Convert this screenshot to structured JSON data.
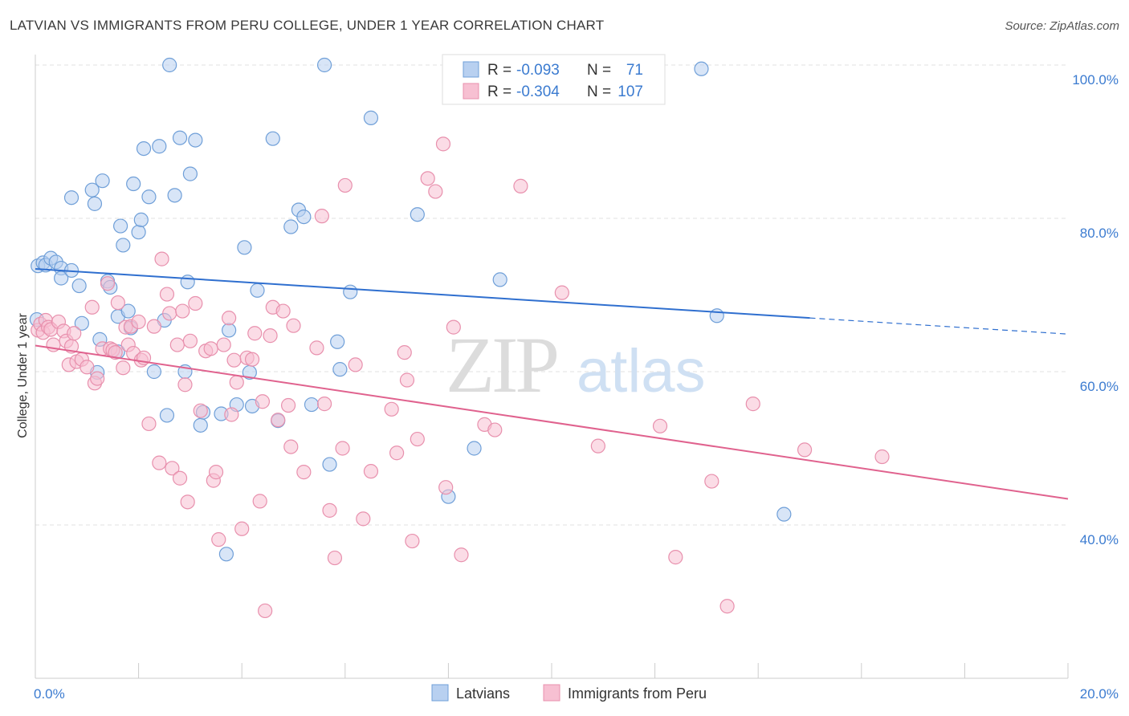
{
  "header": {
    "title": "LATVIAN VS IMMIGRANTS FROM PERU COLLEGE, UNDER 1 YEAR CORRELATION CHART",
    "source": "Source: ZipAtlas.com"
  },
  "watermark": {
    "zip": "ZIP",
    "atlas": "atlas"
  },
  "stats_box": {
    "rows": [
      {
        "r_label": "R =",
        "r_value": "-0.093",
        "n_label": "N =",
        "n_value": "71"
      },
      {
        "r_label": "R =",
        "r_value": "-0.304",
        "n_label": "N =",
        "n_value": "107"
      }
    ]
  },
  "legend": {
    "items": [
      "Latvians",
      "Immigrants from Peru"
    ]
  },
  "colors": {
    "latvians_fill": "#b8d0f0",
    "latvians_stroke": "#6f9fd8",
    "latvians_line": "#2f6fcf",
    "peru_fill": "#f7c0d2",
    "peru_stroke": "#e890ad",
    "peru_line": "#e0628e",
    "value_text": "#3b7bd0",
    "grid": "#e2e2e2"
  },
  "chart_data": {
    "type": "scatter",
    "title": "LATVIAN VS IMMIGRANTS FROM PERU COLLEGE, UNDER 1 YEAR CORRELATION CHART",
    "xlabel": "",
    "ylabel": "College, Under 1 year",
    "xlim": [
      0,
      20
    ],
    "ylim": [
      20,
      100
    ],
    "x_tick_labels": [
      "0.0%",
      "20.0%"
    ],
    "y_tick_labels": [
      "100.0%",
      "80.0%",
      "60.0%",
      "40.0%"
    ],
    "y_ticks": [
      100,
      80,
      60,
      40
    ],
    "grid": true,
    "legend_position": "bottom",
    "series": [
      {
        "name": "Latvians",
        "r": -0.093,
        "n": 71,
        "trend": {
          "x": [
            0,
            15
          ],
          "y": [
            73.4,
            67.0
          ],
          "dashed_to": [
            20,
            64.9
          ]
        },
        "points": [
          [
            0.05,
            73.8
          ],
          [
            0.15,
            74.2
          ],
          [
            0.2,
            73.9
          ],
          [
            0.3,
            74.8
          ],
          [
            0.4,
            74.3
          ],
          [
            0.5,
            73.5
          ],
          [
            0.5,
            72.2
          ],
          [
            0.7,
            73.2
          ],
          [
            0.85,
            71.2
          ],
          [
            0.9,
            66.3
          ],
          [
            1.1,
            83.7
          ],
          [
            1.15,
            81.9
          ],
          [
            1.3,
            84.9
          ],
          [
            0.7,
            82.7
          ],
          [
            1.2,
            59.9
          ],
          [
            1.25,
            64.2
          ],
          [
            1.4,
            71.8
          ],
          [
            1.45,
            71.0
          ],
          [
            1.6,
            62.6
          ],
          [
            1.6,
            67.2
          ],
          [
            1.65,
            79.0
          ],
          [
            1.7,
            76.5
          ],
          [
            1.8,
            67.9
          ],
          [
            1.85,
            65.7
          ],
          [
            1.9,
            84.5
          ],
          [
            2.0,
            78.2
          ],
          [
            2.05,
            79.8
          ],
          [
            2.1,
            89.1
          ],
          [
            2.2,
            82.8
          ],
          [
            2.3,
            60.0
          ],
          [
            2.4,
            89.4
          ],
          [
            2.5,
            66.7
          ],
          [
            2.55,
            54.3
          ],
          [
            2.6,
            100.0
          ],
          [
            2.7,
            83.0
          ],
          [
            2.8,
            90.5
          ],
          [
            2.9,
            60.0
          ],
          [
            2.95,
            71.7
          ],
          [
            3.0,
            85.8
          ],
          [
            3.1,
            90.2
          ],
          [
            3.2,
            53.0
          ],
          [
            3.25,
            54.7
          ],
          [
            3.6,
            54.5
          ],
          [
            3.7,
            36.2
          ],
          [
            3.75,
            65.4
          ],
          [
            3.9,
            55.7
          ],
          [
            4.05,
            76.2
          ],
          [
            4.15,
            59.9
          ],
          [
            4.3,
            70.6
          ],
          [
            4.6,
            90.4
          ],
          [
            4.7,
            53.6
          ],
          [
            4.95,
            78.9
          ],
          [
            5.1,
            81.1
          ],
          [
            5.2,
            80.2
          ],
          [
            5.35,
            55.7
          ],
          [
            5.6,
            100.0
          ],
          [
            5.7,
            47.9
          ],
          [
            5.85,
            63.9
          ],
          [
            5.9,
            60.3
          ],
          [
            6.1,
            70.4
          ],
          [
            6.5,
            93.1
          ],
          [
            7.4,
            80.5
          ],
          [
            8.0,
            43.7
          ],
          [
            8.5,
            50.0
          ],
          [
            9.0,
            72.0
          ],
          [
            10.4,
            100.0
          ],
          [
            12.9,
            99.5
          ],
          [
            13.2,
            67.3
          ],
          [
            14.5,
            41.4
          ],
          [
            0.03,
            66.8
          ],
          [
            4.2,
            55.5
          ]
        ]
      },
      {
        "name": "Immigrants from Peru",
        "r": -0.304,
        "n": 107,
        "trend": {
          "x": [
            0,
            20
          ],
          "y": [
            63.4,
            43.4
          ]
        },
        "points": [
          [
            0.05,
            65.4
          ],
          [
            0.1,
            66.2
          ],
          [
            0.15,
            65.1
          ],
          [
            0.2,
            66.7
          ],
          [
            0.25,
            65.8
          ],
          [
            0.3,
            65.5
          ],
          [
            0.35,
            63.5
          ],
          [
            0.45,
            66.5
          ],
          [
            0.55,
            65.3
          ],
          [
            0.6,
            64.0
          ],
          [
            0.65,
            60.9
          ],
          [
            0.7,
            63.3
          ],
          [
            0.75,
            65.0
          ],
          [
            0.8,
            61.3
          ],
          [
            0.9,
            61.6
          ],
          [
            1.0,
            60.6
          ],
          [
            1.1,
            68.4
          ],
          [
            1.15,
            58.5
          ],
          [
            1.2,
            59.1
          ],
          [
            1.3,
            63.0
          ],
          [
            1.4,
            71.5
          ],
          [
            1.45,
            63.0
          ],
          [
            1.5,
            62.8
          ],
          [
            1.55,
            62.5
          ],
          [
            1.6,
            69.0
          ],
          [
            1.7,
            60.5
          ],
          [
            1.75,
            65.8
          ],
          [
            1.8,
            63.5
          ],
          [
            1.85,
            65.9
          ],
          [
            1.9,
            62.4
          ],
          [
            2.0,
            66.5
          ],
          [
            2.05,
            61.5
          ],
          [
            2.1,
            61.8
          ],
          [
            2.2,
            53.2
          ],
          [
            2.3,
            65.9
          ],
          [
            2.4,
            48.1
          ],
          [
            2.45,
            74.7
          ],
          [
            2.55,
            70.1
          ],
          [
            2.6,
            67.6
          ],
          [
            2.65,
            47.4
          ],
          [
            2.75,
            63.5
          ],
          [
            2.8,
            46.1
          ],
          [
            2.85,
            67.9
          ],
          [
            2.9,
            58.3
          ],
          [
            2.95,
            43.0
          ],
          [
            3.0,
            64.0
          ],
          [
            3.1,
            68.9
          ],
          [
            3.2,
            54.9
          ],
          [
            3.3,
            62.7
          ],
          [
            3.4,
            63.0
          ],
          [
            3.45,
            45.8
          ],
          [
            3.5,
            46.9
          ],
          [
            3.55,
            38.1
          ],
          [
            3.65,
            63.5
          ],
          [
            3.75,
            67.0
          ],
          [
            3.8,
            54.4
          ],
          [
            3.85,
            61.5
          ],
          [
            3.9,
            58.6
          ],
          [
            4.0,
            39.5
          ],
          [
            4.1,
            61.8
          ],
          [
            4.2,
            61.6
          ],
          [
            4.25,
            65.0
          ],
          [
            4.35,
            43.1
          ],
          [
            4.4,
            56.1
          ],
          [
            4.45,
            28.8
          ],
          [
            4.55,
            64.7
          ],
          [
            4.6,
            68.4
          ],
          [
            4.7,
            53.7
          ],
          [
            4.8,
            67.9
          ],
          [
            4.9,
            55.6
          ],
          [
            4.95,
            50.2
          ],
          [
            5.0,
            66.0
          ],
          [
            5.2,
            46.9
          ],
          [
            5.45,
            63.1
          ],
          [
            5.55,
            80.3
          ],
          [
            5.6,
            55.8
          ],
          [
            5.7,
            41.9
          ],
          [
            5.8,
            35.7
          ],
          [
            5.95,
            50.0
          ],
          [
            6.0,
            84.3
          ],
          [
            6.2,
            60.9
          ],
          [
            6.35,
            40.8
          ],
          [
            6.5,
            47.0
          ],
          [
            6.9,
            55.1
          ],
          [
            7.0,
            49.4
          ],
          [
            7.15,
            62.5
          ],
          [
            7.2,
            58.9
          ],
          [
            7.3,
            37.9
          ],
          [
            7.4,
            51.2
          ],
          [
            7.6,
            85.2
          ],
          [
            7.75,
            83.5
          ],
          [
            7.9,
            89.7
          ],
          [
            7.95,
            44.9
          ],
          [
            8.1,
            65.8
          ],
          [
            8.25,
            36.1
          ],
          [
            8.7,
            53.1
          ],
          [
            8.9,
            52.4
          ],
          [
            9.4,
            84.2
          ],
          [
            10.2,
            70.3
          ],
          [
            10.9,
            50.3
          ],
          [
            12.1,
            52.9
          ],
          [
            12.4,
            35.8
          ],
          [
            13.1,
            45.7
          ],
          [
            13.4,
            29.4
          ],
          [
            13.9,
            55.8
          ],
          [
            14.9,
            49.8
          ],
          [
            16.4,
            48.9
          ]
        ]
      }
    ]
  }
}
